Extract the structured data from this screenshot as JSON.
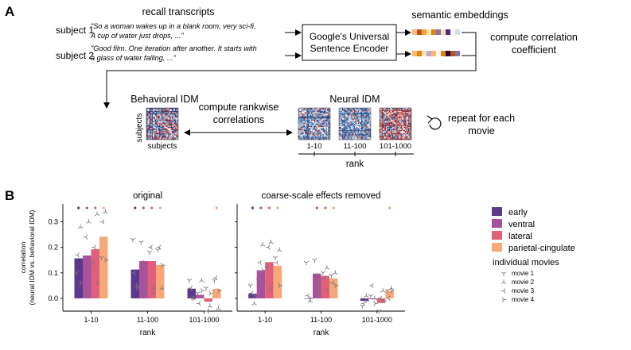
{
  "panel_a": {
    "label": "A",
    "recall_title": "recall transcripts",
    "subject1_label": "subject 1",
    "subject1_quote_line1": "\"So a woman wakes up in a blank room, very sci-fi.",
    "subject1_quote_line2": "A cup of water just drops, ...\"",
    "subject2_label": "subject 2",
    "subject2_quote_line1": "\"Good film. One iteration after another. It starts with",
    "subject2_quote_line2": "a glass of water falling, ...\"",
    "encoder_line1": "Google's Universal",
    "encoder_line2": "Sentence Encoder",
    "embeddings_title": "semantic embeddings",
    "correlation_line1": "compute correlation",
    "correlation_line2": "coefficient",
    "behavioral_title": "Behavioral IDM",
    "subjects_y": "subjects",
    "subjects_x": "subjects",
    "rankwise_line1": "compute rankwise",
    "rankwise_line2": "correlations",
    "neural_title": "Neural IDM",
    "neural_ranks": [
      "1-10",
      "11-100",
      "101-1000"
    ],
    "rank_label": "rank",
    "repeat_line1": "repeat for each",
    "repeat_line2": "movie",
    "embed_colors_1": [
      "#f5b88a",
      "#b35806",
      "#f1a340",
      "#fee0b6",
      "#e08214",
      "#8073ac",
      "#fee0b6",
      "#542788",
      "#f7f7f7",
      "#d8daeb"
    ],
    "embed_colors_2": [
      "#fdb863",
      "#e08214",
      "#fee0b6",
      "#b2abd2",
      "#fdb863",
      "#f7f7f7",
      "#e08214",
      "#2d004b",
      "#b35806",
      "#8073ac"
    ]
  },
  "panel_b": {
    "label": "B",
    "legend_regions": [
      {
        "name": "early",
        "color": "#5b3a8e"
      },
      {
        "name": "ventral",
        "color": "#a8529c"
      },
      {
        "name": "lateral",
        "color": "#e0607a"
      },
      {
        "name": "parietal-cingulate",
        "color": "#f7a878"
      }
    ],
    "legend_movies_title": "individual movies",
    "legend_movies": [
      "movie 1",
      "movie 2",
      "movie 3",
      "movie 4"
    ]
  },
  "chart_data": [
    {
      "type": "bar",
      "title": "original",
      "xlabel": "rank",
      "ylabel": "correlation\n(neural IDM vs. behavioral IDM)",
      "categories": [
        "1-10",
        "11-100",
        "101-1000"
      ],
      "ylim": [
        -0.05,
        0.37
      ],
      "yticks": [
        "0.0",
        "0.1",
        "0.2",
        "0.3"
      ],
      "series": [
        {
          "name": "early",
          "values": [
            0.157,
            0.113,
            0.038
          ]
        },
        {
          "name": "ventral",
          "values": [
            0.168,
            0.146,
            0.014
          ]
        },
        {
          "name": "lateral",
          "values": [
            0.193,
            0.146,
            -0.013
          ]
        },
        {
          "name": "parietal-cingulate",
          "values": [
            0.242,
            0.131,
            0.037
          ]
        }
      ],
      "movies": [
        [
          [
            0.1,
            0.28,
            0.17,
            0.06
          ],
          [
            0.02,
            0.3,
            0.24,
            0.12
          ],
          [
            0.14,
            0.33,
            0.2,
            0.06
          ],
          [
            0.16,
            0.34,
            0.3,
            0.15
          ]
        ],
        [
          [
            0.23,
            0.05,
            0.1,
            0.04
          ],
          [
            0.22,
            0.02,
            0.14,
            0.05
          ],
          [
            0.18,
            0.02,
            0.2,
            0.04
          ],
          [
            0.19,
            0.04,
            0.2,
            0.13
          ]
        ],
        [
          [
            0.07,
            0.0,
            0.04,
            0.0
          ],
          [
            0.02,
            0.07,
            -0.02,
            0.03
          ],
          [
            0.04,
            -0.03,
            -0.05,
            0.02
          ],
          [
            0.07,
            -0.04,
            0.08,
            0.03
          ]
        ]
      ],
      "significance": [
        [
          true,
          true,
          true,
          true
        ],
        [
          true,
          true,
          true,
          true
        ],
        [
          false,
          false,
          false,
          true
        ]
      ]
    },
    {
      "type": "bar",
      "title": "coarse-scale effects removed",
      "xlabel": "rank",
      "ylabel": "",
      "categories": [
        "1-10",
        "11-100",
        "101-1000"
      ],
      "ylim": [
        -0.05,
        0.37
      ],
      "series": [
        {
          "name": "early",
          "values": [
            0.018,
            0.0,
            -0.01
          ]
        },
        {
          "name": "ventral",
          "values": [
            0.11,
            0.097,
            -0.003
          ]
        },
        {
          "name": "lateral",
          "values": [
            0.142,
            0.088,
            -0.018
          ]
        },
        {
          "name": "parietal-cingulate",
          "values": [
            0.128,
            0.078,
            0.029
          ]
        }
      ],
      "movies": [
        [
          [
            0.05,
            -0.02,
            0.02,
            0.01
          ],
          [
            0.07,
            0.21,
            0.14,
            0.11
          ],
          [
            0.12,
            0.22,
            0.2,
            0.04
          ],
          [
            0.16,
            0.19,
            0.14,
            0.05
          ]
        ],
        [
          [
            0.14,
            -0.01,
            0.01,
            0.0
          ],
          [
            0.15,
            0.06,
            0.09,
            0.01
          ],
          [
            0.1,
            0.12,
            0.08,
            0.03
          ],
          [
            0.09,
            0.1,
            0.06,
            0.05
          ]
        ],
        [
          [
            -0.03,
            0.01,
            -0.02,
            -0.01
          ],
          [
            0.01,
            0.0,
            0.05,
            -0.02
          ],
          [
            -0.05,
            0.03,
            0.0,
            -0.01
          ],
          [
            0.03,
            0.04,
            0.0,
            0.03
          ]
        ]
      ],
      "significance": [
        [
          true,
          true,
          true,
          true
        ],
        [
          false,
          true,
          true,
          true
        ],
        [
          false,
          false,
          false,
          true
        ]
      ]
    }
  ]
}
